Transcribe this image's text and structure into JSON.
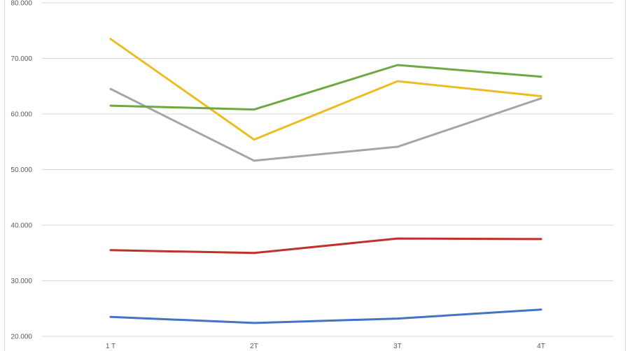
{
  "chart_data": {
    "type": "line",
    "categories": [
      "1 T",
      "2T",
      "3T",
      "4T"
    ],
    "ylim": [
      20,
      80
    ],
    "yticks": [
      "20.000",
      "30.000",
      "40.000",
      "50.000",
      "60.000",
      "70.000",
      "80.000"
    ],
    "ytick_values": [
      20,
      30,
      40,
      50,
      60,
      70,
      80
    ],
    "grid": true,
    "series": [
      {
        "color": "#4472c4",
        "values": [
          23.5,
          22.4,
          23.2,
          24.8
        ]
      },
      {
        "color": "#c0312b",
        "values": [
          35.5,
          35.0,
          37.6,
          37.5
        ]
      },
      {
        "color": "#a5a5a5",
        "values": [
          64.5,
          51.6,
          54.1,
          62.8
        ]
      },
      {
        "color": "#ecbd23",
        "values": [
          73.5,
          55.4,
          65.9,
          63.2
        ]
      },
      {
        "color": "#6fa843",
        "values": [
          61.5,
          60.8,
          68.8,
          66.7
        ]
      }
    ]
  }
}
